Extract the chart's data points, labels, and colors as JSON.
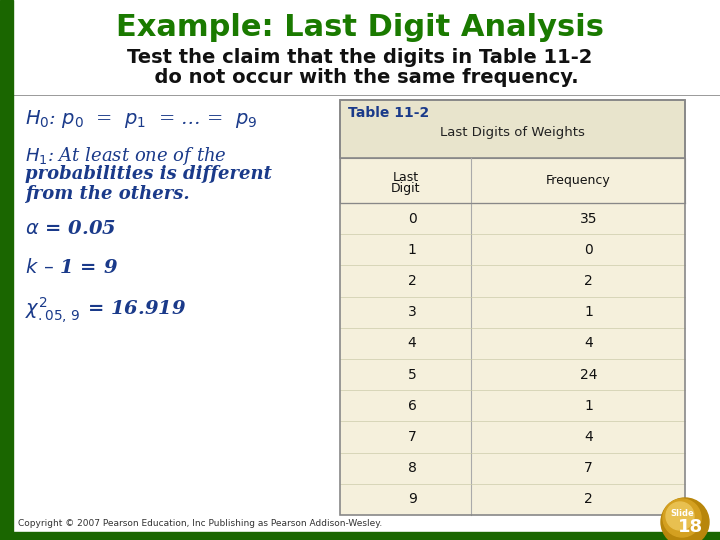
{
  "title": "Example: Last Digit Analysis",
  "title_color": "#1a7a00",
  "subtitle_line1": "Test the claim that the digits in Table 11-2",
  "subtitle_line2": "  do not occur with the same frequency.",
  "subtitle_color": "#111111",
  "bg_color": "#ffffff",
  "left_bar_color": "#1a6600",
  "h0_text": "$H_0$: $p_0$  =  $p_1$  = … =  $p_9$",
  "h1_line1": "$H_1$: At least one of the",
  "h1_line2": "probabilities is different",
  "h1_line3": "from the others.",
  "alpha_text": "$\\alpha$ = 0.05",
  "k_text": "$k$ – 1 = 9",
  "chi_text": "$\\chi^2_{.05,\\,9}$ = 16.919",
  "left_text_color": "#1a3a8a",
  "table_title": "Table 11-2",
  "table_subtitle": "Last Digits of Weights",
  "table_col1_header": "Last\nDigit",
  "table_col2_header": "Frequency",
  "table_digits": [
    0,
    1,
    2,
    3,
    4,
    5,
    6,
    7,
    8,
    9
  ],
  "table_frequencies": [
    35,
    0,
    2,
    1,
    4,
    24,
    1,
    4,
    7,
    2
  ],
  "table_header_color": "#1a3a8a",
  "table_body_bg": "#f5f0dc",
  "table_header_bg": "#e8e4cc",
  "copyright_text": "Copyright © 2007 Pearson Education, Inc Publishing as Pearson Addison-Wesley.",
  "slide_number": "18"
}
